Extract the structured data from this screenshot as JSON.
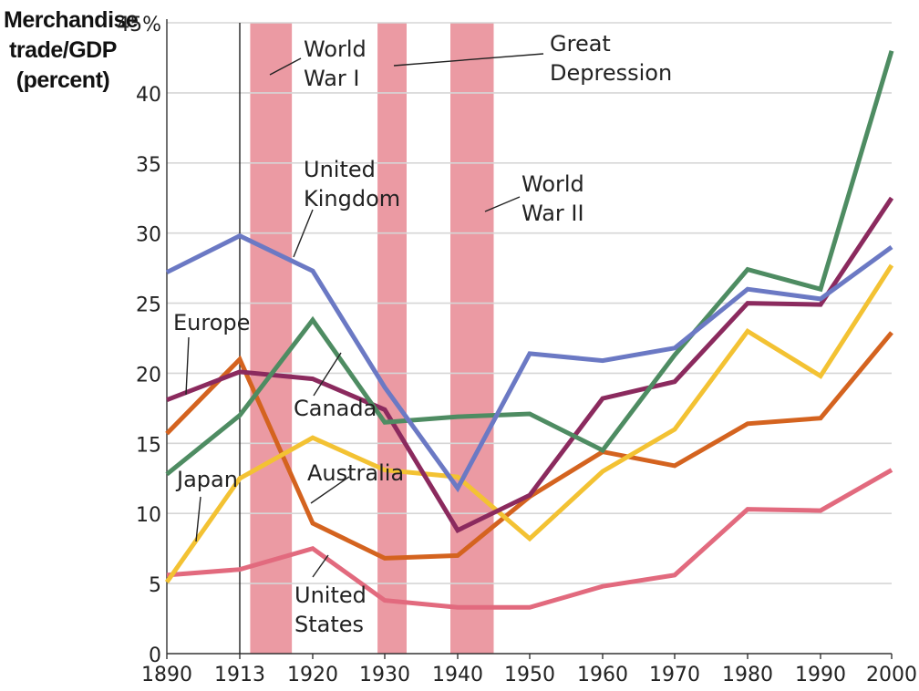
{
  "chart_data": {
    "type": "line",
    "ylabel": [
      "Merchandise",
      "trade/GDP",
      "(percent)"
    ],
    "xlabel": "",
    "xlim": [
      1890,
      2000
    ],
    "ylim": [
      0,
      45
    ],
    "x_ticks": [
      1890,
      1913,
      1920,
      1930,
      1940,
      1950,
      1960,
      1970,
      1980,
      1990,
      2000
    ],
    "x_tick_labels": [
      "1890",
      "1913",
      "1920",
      "1930",
      "1940",
      "1950",
      "1960",
      "1970",
      "1980",
      "1990",
      "2000"
    ],
    "y_ticks": [
      0,
      5,
      10,
      15,
      20,
      25,
      30,
      35,
      40,
      45
    ],
    "y_tick_labels": [
      "0",
      "5",
      "10",
      "15",
      "20",
      "25",
      "30",
      "35",
      "40",
      "45%"
    ],
    "grid": "horizontal",
    "marker_line_year": 1913,
    "shaded_periods": [
      {
        "name": "World War I",
        "label": [
          "World",
          "War I"
        ],
        "start": 1914,
        "end": 1918
      },
      {
        "name": "Great Depression",
        "label": [
          "Great",
          "Depression"
        ],
        "start": 1929,
        "end": 1933
      },
      {
        "name": "World War II",
        "label": [
          "World",
          "War II"
        ],
        "start": 1939,
        "end": 1945
      }
    ],
    "series": [
      {
        "name": "United Kingdom",
        "label": [
          "United",
          "Kingdom"
        ],
        "color": "#6b79c4",
        "x": [
          1890,
          1913,
          1920,
          1930,
          1940,
          1950,
          1960,
          1970,
          1980,
          1990,
          2000
        ],
        "values": [
          27.2,
          29.8,
          27.3,
          19.0,
          11.8,
          21.4,
          20.9,
          21.8,
          26.0,
          25.3,
          29.0
        ]
      },
      {
        "name": "Canada",
        "label": [
          "Canada"
        ],
        "color": "#4e8c62",
        "x": [
          1890,
          1913,
          1920,
          1930,
          1940,
          1950,
          1960,
          1970,
          1980,
          1990,
          2000
        ],
        "values": [
          12.8,
          17.0,
          23.8,
          16.5,
          16.9,
          17.1,
          14.5,
          21.3,
          27.4,
          26.0,
          43.0
        ]
      },
      {
        "name": "Europe",
        "label": [
          "Europe"
        ],
        "color": "#8b2a5e",
        "x": [
          1890,
          1913,
          1920,
          1930,
          1940,
          1950,
          1960,
          1970,
          1980,
          1990,
          2000
        ],
        "values": [
          18.1,
          20.1,
          19.6,
          17.4,
          8.8,
          11.3,
          18.2,
          19.4,
          25.0,
          24.9,
          32.5
        ]
      },
      {
        "name": "Australia",
        "label": [
          "Australia"
        ],
        "color": "#d4631f",
        "x": [
          1890,
          1913,
          1920,
          1930,
          1940,
          1950,
          1960,
          1970,
          1980,
          1990,
          2000
        ],
        "values": [
          15.7,
          21.0,
          9.3,
          6.8,
          7.0,
          11.2,
          14.4,
          13.4,
          16.4,
          16.8,
          22.9
        ]
      },
      {
        "name": "Japan",
        "label": [
          "Japan"
        ],
        "color": "#f3c233",
        "x": [
          1890,
          1913,
          1920,
          1930,
          1940,
          1950,
          1960,
          1970,
          1980,
          1990,
          2000
        ],
        "values": [
          5.1,
          12.5,
          15.4,
          13.1,
          12.6,
          8.2,
          13.0,
          16.0,
          23.0,
          19.8,
          27.7
        ]
      },
      {
        "name": "United States",
        "label": [
          "United",
          "States"
        ],
        "color": "#e26a7e",
        "x": [
          1890,
          1913,
          1920,
          1930,
          1940,
          1950,
          1960,
          1970,
          1980,
          1990,
          2000
        ],
        "values": [
          5.6,
          6.0,
          7.5,
          3.8,
          3.3,
          3.3,
          4.8,
          5.6,
          10.3,
          10.2,
          13.1
        ]
      }
    ]
  }
}
